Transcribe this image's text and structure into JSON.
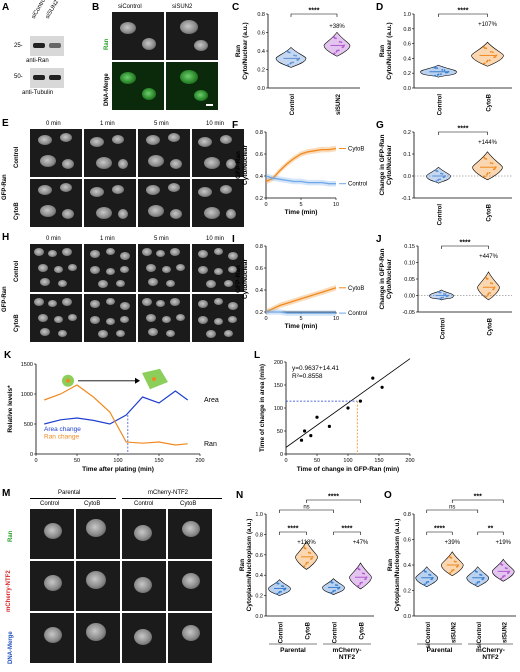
{
  "panels": {
    "A": {
      "label": "A",
      "lanes": [
        "siControl",
        "siSUN2"
      ],
      "mw": [
        "25-",
        "50-"
      ],
      "blots": [
        "anti-Ran",
        "anti-Tubulin"
      ]
    },
    "B": {
      "label": "B",
      "cols": [
        "siControl",
        "siSUN2"
      ],
      "rows": [
        "Ran",
        "DNA-Merge"
      ]
    },
    "C": {
      "label": "C",
      "ylabel": "Ran Cyto/Nuclear (a.u.)",
      "ticks": [
        "0.0",
        "0.2",
        "0.4",
        "0.6",
        "0.8"
      ],
      "groups": [
        "siControl",
        "siSUN2"
      ],
      "sig": "****",
      "pct": "+38%"
    },
    "D": {
      "label": "D",
      "ylabel": "Ran Cyto/Nuclear (a.u.)",
      "ticks": [
        "0.0",
        "0.2",
        "0.4",
        "0.6",
        "0.8",
        "1.0"
      ],
      "groups": [
        "Control",
        "CytoB"
      ],
      "sig": "****",
      "pct": "+107%"
    },
    "E": {
      "label": "E",
      "times": [
        "0 min",
        "1 min",
        "5 min",
        "10 min"
      ],
      "rowlabel": "GFP-Ran",
      "rows": [
        "Control",
        "CytoB"
      ]
    },
    "F": {
      "label": "F",
      "ylabel": "GFP-Ran Cyto/Nuclear",
      "xlabel": "Time (min)",
      "yticks": [
        "0.2",
        "0.4",
        "0.6",
        "0.8"
      ],
      "xticks": [
        "0",
        "5",
        "10"
      ],
      "series": [
        "CytoB",
        "Control"
      ]
    },
    "G": {
      "label": "G",
      "ylabel": "Change in GFP-Ran Cyto/Nuclear",
      "ticks": [
        "-0.1",
        "0.0",
        "0.1",
        "0.2"
      ],
      "groups": [
        "Control",
        "CytoB"
      ],
      "sig": "****",
      "pct": "+144%"
    },
    "H": {
      "label": "H",
      "times": [
        "0 min",
        "1 min",
        "5 min",
        "10 min"
      ],
      "rowlabel": "GFP-Ran",
      "rows": [
        "Control",
        "CytoB"
      ]
    },
    "I": {
      "label": "I",
      "ylabel": "GFP-Ran Cyto/Nuclear",
      "xlabel": "Time (min)",
      "yticks": [
        "0.2",
        "0.4",
        "0.6",
        "0.8"
      ],
      "xticks": [
        "0",
        "5",
        "10"
      ],
      "series": [
        "CytoB",
        "Control"
      ]
    },
    "J": {
      "label": "J",
      "ylabel": "Change in GFP-Ran Cyto/Nuclear",
      "ticks": [
        "-0.05",
        "0.00",
        "0.05",
        "0.10",
        "0.15"
      ],
      "groups": [
        "Control",
        "CytoB"
      ],
      "sig": "****",
      "pct": "+447%"
    },
    "K": {
      "label": "K",
      "ylabel": "Relative levels*",
      "xlabel": "Time after plating (min)",
      "yticks": [
        "0",
        "500",
        "1000",
        "1500"
      ],
      "xticks": [
        "0",
        "50",
        "100",
        "150",
        "200"
      ],
      "legend": [
        "Area change",
        "Ran change"
      ],
      "linelabels": [
        "Area",
        "Ran"
      ]
    },
    "L": {
      "label": "L",
      "ylabel": "Time of change in area (min)",
      "xlabel": "Time of change in GFP-Ran (min)",
      "ticks": [
        "0",
        "50",
        "100",
        "150",
        "200"
      ],
      "eq1": "y=0.9637+14.41",
      "eq2": "R²=0.8558"
    },
    "M": {
      "label": "M",
      "top": [
        "Parental",
        "mCherry-NTF2"
      ],
      "cols": [
        "Control",
        "CytoB",
        "Control",
        "CytoB"
      ],
      "rows": [
        "Ran",
        "mCherry-NTF2",
        "DNA-Merge"
      ]
    },
    "N": {
      "label": "N",
      "ylabel": "Ran Cytoplasm/Nucleoplasm (a.u.)",
      "ticks": [
        "0.0",
        "0.2",
        "0.4",
        "0.6",
        "0.8",
        "1.0"
      ],
      "groups": [
        "Control",
        "CytoB",
        "Control",
        "CytoB"
      ],
      "bottom": [
        "Parental",
        "mCherry-NTF2"
      ],
      "sigs": [
        "ns",
        "****",
        "****",
        "****"
      ],
      "pcts": [
        "+118%",
        "+47%"
      ]
    },
    "O": {
      "label": "O",
      "ylabel": "Ran Cytoplasm/Nucleoplasm (a.u.)",
      "ticks": [
        "0.0",
        "0.2",
        "0.4",
        "0.6",
        "0.8"
      ],
      "groups": [
        "siControl",
        "siSUN2",
        "siControl",
        "siSUN2"
      ],
      "bottom": [
        "Parental",
        "mCherry-NTF2"
      ],
      "sigs": [
        "ns",
        "***",
        "****",
        "**"
      ],
      "pcts": [
        "+39%",
        "+19%"
      ]
    }
  },
  "chart_data": [
    {
      "type": "line",
      "panel": "F",
      "x": [
        0,
        1,
        2,
        3,
        4,
        5,
        6,
        7,
        8,
        9,
        10
      ],
      "series": [
        {
          "name": "CytoB",
          "values": [
            0.35,
            0.38,
            0.45,
            0.51,
            0.56,
            0.6,
            0.62,
            0.63,
            0.64,
            0.64,
            0.65
          ]
        },
        {
          "name": "Control",
          "values": [
            0.4,
            0.38,
            0.37,
            0.36,
            0.35,
            0.35,
            0.34,
            0.34,
            0.34,
            0.33,
            0.33
          ]
        }
      ],
      "xlabel": "Time (min)",
      "ylabel": "GFP-Ran Cyto/Nuclear",
      "ylim": [
        0.2,
        0.8
      ]
    },
    {
      "type": "line",
      "panel": "I",
      "x": [
        0,
        1,
        2,
        3,
        4,
        5,
        6,
        7,
        8,
        9,
        10
      ],
      "series": [
        {
          "name": "CytoB",
          "values": [
            0.2,
            0.23,
            0.26,
            0.28,
            0.3,
            0.32,
            0.34,
            0.36,
            0.38,
            0.4,
            0.42
          ]
        },
        {
          "name": "Control",
          "values": [
            0.2,
            0.2,
            0.2,
            0.19,
            0.19,
            0.19,
            0.19,
            0.19,
            0.19,
            0.19,
            0.19
          ]
        }
      ],
      "xlabel": "Time (min)",
      "ylabel": "GFP-Ran Cyto/Nuclear",
      "ylim": [
        0.2,
        0.8
      ]
    },
    {
      "type": "line",
      "panel": "K",
      "x": [
        10,
        30,
        50,
        70,
        90,
        110,
        130,
        150,
        170,
        185
      ],
      "series": [
        {
          "name": "Area change",
          "values": [
            500,
            570,
            600,
            560,
            500,
            650,
            950,
            850,
            1050,
            900
          ]
        },
        {
          "name": "Ran change",
          "values": [
            900,
            1000,
            1150,
            950,
            700,
            200,
            180,
            200,
            150,
            170
          ]
        }
      ],
      "xlabel": "Time after plating (min)",
      "ylabel": "Relative levels*",
      "ylim": [
        0,
        1500
      ]
    },
    {
      "type": "scatter",
      "panel": "L",
      "x": [
        25,
        30,
        40,
        50,
        70,
        100,
        120,
        140,
        155
      ],
      "y": [
        30,
        50,
        40,
        80,
        60,
        100,
        115,
        165,
        145
      ],
      "xlabel": "Time of change in GFP-Ran (min)",
      "ylabel": "Time of change in area (min)",
      "ylim": [
        0,
        200
      ]
    }
  ]
}
